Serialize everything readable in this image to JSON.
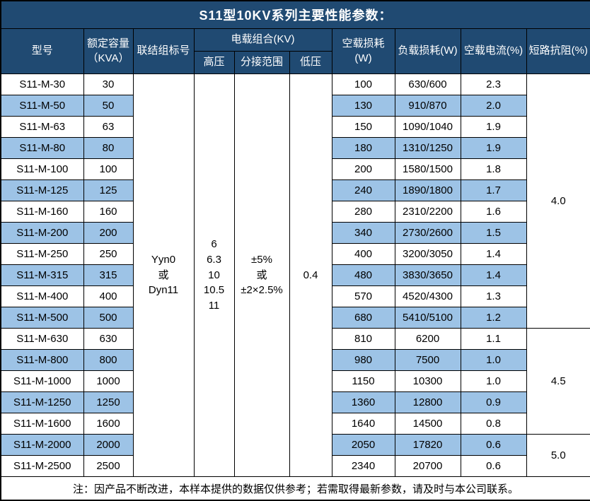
{
  "title": "S11型10KV系列主要性能参数：",
  "header": {
    "model": "型号",
    "capacity": "额定容量\n（KVA）",
    "vector_group": "联结组标号",
    "load_combo": "电载组合(KV)",
    "hv": "高压",
    "tap_range": "分接范围",
    "lv": "低压",
    "no_load_loss": "空载损耗(W)",
    "load_loss": "负载损耗(W)",
    "no_load_current": "空载电流(%)",
    "impedance": "短路抗阻(%)"
  },
  "note": "注：因产品不断改进，本样本提供的数据仅供参考；若需取得最新参数，请及时与本公司联系。",
  "colors": {
    "header_bg": "#204A72",
    "header_text": "#FFFFFF",
    "band_bg": "#9DC3E6",
    "border": "#000000",
    "body_text": "#000000"
  },
  "chart_data": {
    "type": "table",
    "title": "S11型10KV系列主要性能参数：",
    "columns": [
      "型号",
      "额定容量（KVA）",
      "联结组标号",
      "电载组合(KV)-高压",
      "电载组合(KV)-分接范围",
      "电载组合(KV)-低压",
      "空载损耗(W)",
      "负载损耗(W)",
      "空载电流(%)",
      "短路抗阻(%)"
    ],
    "merged": {
      "vector_group": "Yyn0\n或\nDyn11",
      "hv": "6\n6.3\n10\n10.5\n11",
      "tap_range": "±5%\n或\n±2×2.5%",
      "lv": "0.4"
    },
    "rows": [
      [
        "S11-M-30",
        "30",
        "100",
        "630/600",
        "2.3"
      ],
      [
        "S11-M-50",
        "50",
        "130",
        "910/870",
        "2.0"
      ],
      [
        "S11-M-63",
        "63",
        "150",
        "1090/1040",
        "1.9"
      ],
      [
        "S11-M-80",
        "80",
        "180",
        "1310/1250",
        "1.9"
      ],
      [
        "S11-M-100",
        "100",
        "200",
        "1580/1500",
        "1.8"
      ],
      [
        "S11-M-125",
        "125",
        "240",
        "1890/1800",
        "1.7"
      ],
      [
        "S11-M-160",
        "160",
        "280",
        "2310/2200",
        "1.6"
      ],
      [
        "S11-M-200",
        "200",
        "340",
        "2730/2600",
        "1.5"
      ],
      [
        "S11-M-250",
        "250",
        "400",
        "3200/3050",
        "1.4"
      ],
      [
        "S11-M-315",
        "315",
        "480",
        "3830/3650",
        "1.4"
      ],
      [
        "S11-M-400",
        "400",
        "570",
        "4520/4300",
        "1.3"
      ],
      [
        "S11-M-500",
        "500",
        "680",
        "5410/5100",
        "1.2"
      ],
      [
        "S11-M-630",
        "630",
        "810",
        "6200",
        "1.1"
      ],
      [
        "S11-M-800",
        "800",
        "980",
        "7500",
        "1.0"
      ],
      [
        "S11-M-1000",
        "1000",
        "1150",
        "10300",
        "1.0"
      ],
      [
        "S11-M-1250",
        "1250",
        "1360",
        "12800",
        "0.9"
      ],
      [
        "S11-M-1600",
        "1600",
        "1640",
        "14500",
        "0.8"
      ],
      [
        "S11-M-2000",
        "2000",
        "2050",
        "17820",
        "0.6"
      ],
      [
        "S11-M-2500",
        "2500",
        "2340",
        "20700",
        "0.6"
      ]
    ],
    "impedance_groups": [
      {
        "value": "4.0",
        "rows": 12
      },
      {
        "value": "4.5",
        "rows": 5
      },
      {
        "value": "5.0",
        "rows": 2
      }
    ]
  }
}
